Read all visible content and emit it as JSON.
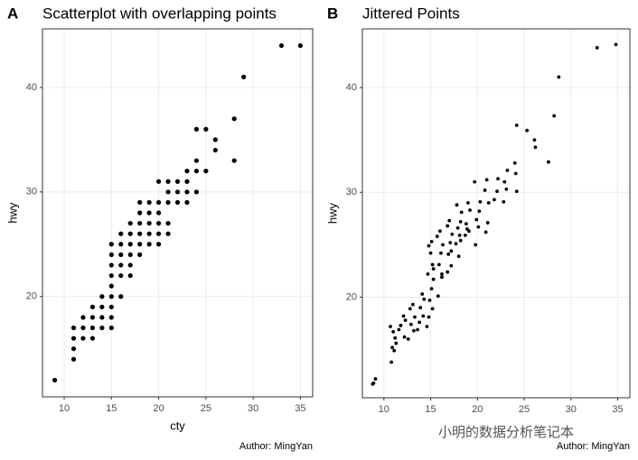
{
  "chart_data": [
    {
      "type": "scatter",
      "tag": "A",
      "title": "Scatterplot with overlapping points",
      "x_label": "cty",
      "y_label": "hwy",
      "caption": "Author: MingYan",
      "xlim": [
        7.7,
        36.3
      ],
      "ylim": [
        10.4,
        45.6
      ],
      "xticks": [
        10,
        15,
        20,
        25,
        30,
        35
      ],
      "yticks": [
        20,
        30,
        40
      ],
      "grid": true,
      "color": "#000000",
      "x": [
        9,
        11,
        11,
        11,
        11,
        12,
        12,
        12,
        13,
        13,
        13,
        13,
        14,
        14,
        14,
        14,
        15,
        15,
        15,
        15,
        15,
        15,
        15,
        15,
        15,
        16,
        16,
        16,
        16,
        16,
        16,
        17,
        17,
        17,
        17,
        17,
        17,
        18,
        18,
        18,
        18,
        18,
        18,
        19,
        19,
        19,
        19,
        19,
        20,
        20,
        20,
        20,
        20,
        20,
        21,
        21,
        21,
        21,
        21,
        22,
        22,
        22,
        23,
        23,
        23,
        23,
        24,
        24,
        24,
        24,
        25,
        25,
        26,
        26,
        28,
        28,
        29,
        33,
        35
      ],
      "y": [
        12,
        14,
        15,
        16,
        17,
        16,
        17,
        18,
        16,
        17,
        18,
        19,
        17,
        18,
        19,
        20,
        17,
        18,
        19,
        20,
        21,
        22,
        23,
        24,
        25,
        20,
        22,
        23,
        24,
        25,
        26,
        22,
        23,
        24,
        25,
        26,
        27,
        24,
        25,
        26,
        27,
        28,
        29,
        25,
        26,
        27,
        28,
        29,
        25,
        26,
        27,
        28,
        29,
        31,
        26,
        27,
        29,
        30,
        31,
        29,
        30,
        31,
        29,
        30,
        31,
        32,
        30,
        32,
        33,
        36,
        32,
        36,
        34,
        35,
        33,
        37,
        41,
        44,
        44
      ]
    },
    {
      "type": "scatter",
      "tag": "B",
      "title": "Jittered Points",
      "y_label": "hwy",
      "caption": "Author: MingYan",
      "xlim": [
        7.7,
        36.3
      ],
      "ylim": [
        10.4,
        45.6
      ],
      "xticks": [
        10,
        15,
        20,
        25,
        30,
        35
      ],
      "yticks": [
        20,
        30,
        40
      ],
      "grid": true,
      "color": "#000000",
      "x": [
        8.8,
        9.1,
        8.9,
        10.8,
        11.1,
        10.9,
        11.2,
        11.0,
        10.7,
        11.3,
        11.6,
        12.2,
        11.8,
        12.3,
        12.1,
        12.6,
        13.2,
        12.9,
        13.3,
        12.8,
        13.1,
        13.6,
        13.8,
        14.2,
        13.9,
        14.3,
        14.1,
        14.6,
        14.8,
        15.2,
        14.9,
        15.1,
        15.3,
        14.7,
        15.2,
        15.0,
        14.8,
        15.3,
        15.1,
        15.8,
        16.2,
        15.9,
        16.1,
        16.3,
        15.7,
        16.0,
        16.2,
        16.8,
        17.2,
        16.9,
        17.1,
        17.3,
        16.8,
        17.0,
        17.2,
        17.7,
        18.1,
        17.9,
        18.2,
        18.3,
        17.8,
        18.0,
        18.2,
        18.7,
        19.1,
        18.8,
        19.2,
        19.0,
        18.9,
        19.8,
        20.1,
        19.9,
        20.2,
        20.3,
        19.7,
        20.9,
        21.1,
        21.2,
        20.8,
        21.0,
        21.8,
        22.1,
        22.2,
        22.8,
        23.1,
        22.9,
        23.2,
        24.2,
        24.1,
        24.0,
        24.2,
        25.3,
        26.2,
        26.1,
        27.6,
        28.2,
        28.7,
        32.8,
        34.8
      ],
      "y": [
        11.7,
        12.2,
        11.8,
        13.8,
        14.9,
        15.2,
        16.1,
        16.7,
        17.2,
        15.6,
        16.9,
        16.2,
        17.3,
        17.8,
        18.2,
        16.0,
        16.8,
        17.4,
        18.1,
        18.9,
        19.3,
        16.9,
        17.6,
        18.2,
        19.0,
        19.8,
        20.3,
        17.2,
        18.1,
        18.9,
        19.7,
        20.8,
        21.7,
        22.2,
        23.1,
        24.2,
        24.9,
        22.7,
        25.3,
        20.1,
        22.2,
        23.1,
        24.2,
        25.0,
        25.8,
        26.3,
        21.9,
        22.4,
        23.0,
        24.1,
        25.2,
        26.0,
        26.8,
        27.3,
        24.4,
        25.1,
        25.9,
        26.6,
        27.2,
        28.1,
        28.8,
        23.9,
        25.4,
        25.9,
        26.3,
        27.0,
        28.3,
        29.0,
        26.5,
        25.0,
        26.7,
        27.4,
        28.2,
        29.1,
        31.0,
        26.2,
        27.1,
        29.0,
        30.2,
        31.2,
        29.3,
        30.1,
        31.3,
        29.1,
        30.3,
        31.0,
        32.1,
        30.1,
        31.8,
        32.8,
        36.4,
        35.9,
        34.3,
        35.0,
        32.9,
        37.3,
        41.0,
        43.8,
        44.1
      ]
    }
  ],
  "watermark": "小明的数据分析笔记本"
}
